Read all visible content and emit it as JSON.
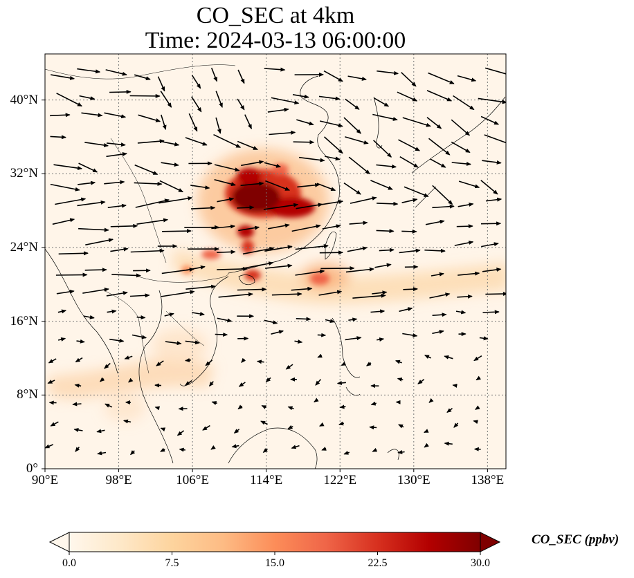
{
  "title": {
    "line1": "CO_SEC at 4km",
    "line2": "Time: 2024-03-13 06:00:00"
  },
  "map": {
    "extent": {
      "lon": [
        90,
        140
      ],
      "lat": [
        0,
        45
      ]
    },
    "gridlines": "dotted",
    "lon_ticks": [
      {
        "value": 90,
        "label": "90°E"
      },
      {
        "value": 98,
        "label": "98°E"
      },
      {
        "value": 106,
        "label": "106°E"
      },
      {
        "value": 114,
        "label": "114°E"
      },
      {
        "value": 122,
        "label": "122°E"
      },
      {
        "value": 130,
        "label": "130°E"
      },
      {
        "value": 138,
        "label": "138°E"
      }
    ],
    "lat_ticks": [
      {
        "value": 0,
        "label": "0°"
      },
      {
        "value": 8,
        "label": "8°N"
      },
      {
        "value": 16,
        "label": "16°N"
      },
      {
        "value": 24,
        "label": "24°N"
      },
      {
        "value": 32,
        "label": "32°N"
      },
      {
        "value": 40,
        "label": "40°N"
      }
    ],
    "features": [
      "coastlines",
      "country borders"
    ],
    "wind_vectors": "black arrows"
  },
  "colorbar": {
    "label": "CO_SEC (ppbv)",
    "min": 0,
    "max": 30,
    "extend": "both",
    "colormap": "OrRd",
    "colors": [
      "#fff7ec",
      "#fee8c8",
      "#fdd49e",
      "#fdbb84",
      "#fc8d59",
      "#ef6548",
      "#d7301f",
      "#b30000",
      "#7f0000"
    ],
    "ticks": [
      {
        "value": 0,
        "label": "0.0"
      },
      {
        "value": 7.5,
        "label": "7.5"
      },
      {
        "value": 15,
        "label": "15.0"
      },
      {
        "value": 22.5,
        "label": "22.5"
      },
      {
        "value": 30,
        "label": "30.0"
      }
    ]
  }
}
